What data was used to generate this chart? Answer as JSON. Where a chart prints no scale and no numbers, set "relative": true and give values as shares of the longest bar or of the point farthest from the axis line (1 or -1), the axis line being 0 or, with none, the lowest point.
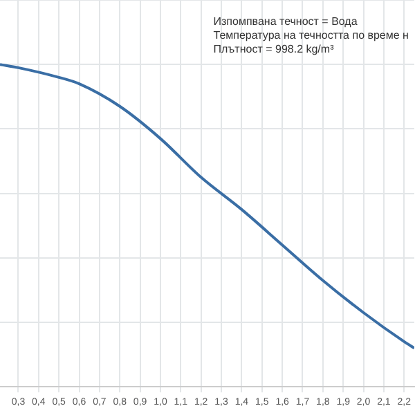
{
  "chart_data": {
    "type": "line",
    "relative": true,
    "x": [
      0.21,
      0.3,
      0.5,
      0.6,
      0.8,
      1.0,
      1.2,
      1.4,
      1.6,
      1.8,
      2.0,
      2.2,
      2.25
    ],
    "series": [
      {
        "color": "#3a6ea5",
        "values": [
          1,
          0.99,
          0.96,
          0.94,
          0.87,
          0.77,
          0.65,
          0.55,
          0.44,
          0.33,
          0.23,
          0.14,
          0.12
        ]
      }
    ],
    "xlim": [
      0.21,
      2.25
    ],
    "xticks": [
      {
        "value": 0.3,
        "label": "0,3"
      },
      {
        "value": 0.4,
        "label": "0,4"
      },
      {
        "value": 0.5,
        "label": "0,5"
      },
      {
        "value": 0.6,
        "label": "0,6"
      },
      {
        "value": 0.7,
        "label": "0,7"
      },
      {
        "value": 0.8,
        "label": "0,8"
      },
      {
        "value": 0.9,
        "label": "0,9"
      },
      {
        "value": 1.0,
        "label": "1,0"
      },
      {
        "value": 1.1,
        "label": "1,1"
      },
      {
        "value": 1.2,
        "label": "1,2"
      },
      {
        "value": 1.3,
        "label": "1,3"
      },
      {
        "value": 1.4,
        "label": "1,4"
      },
      {
        "value": 1.5,
        "label": "1,5"
      },
      {
        "value": 1.6,
        "label": "1,6"
      },
      {
        "value": 1.7,
        "label": "1,7"
      },
      {
        "value": 1.8,
        "label": "1,8"
      },
      {
        "value": 1.9,
        "label": "1,9"
      },
      {
        "value": 2.0,
        "label": "2,0"
      },
      {
        "value": 2.1,
        "label": "2,1"
      },
      {
        "value": 2.2,
        "label": "2,2"
      }
    ],
    "annotations": [
      "Изпомпвана течност = Вода",
      "Температура на течността по време н",
      "Плътност = 998.2 kg/m³"
    ],
    "grid": true,
    "legend": false,
    "marker": "none",
    "line_style": "solid",
    "tick_labels": "x"
  }
}
